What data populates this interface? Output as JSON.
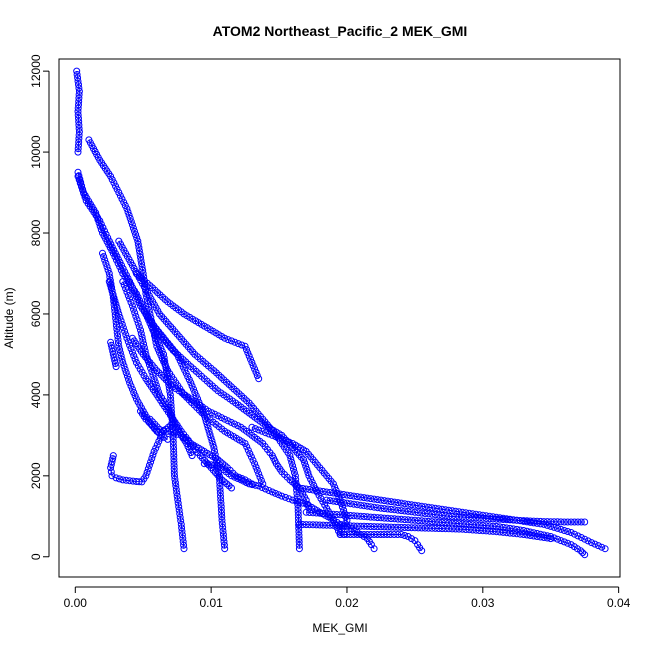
{
  "chart_data": {
    "type": "scatter",
    "title": "ATOM2 Northeast_Pacific_2 MEK_GMI",
    "xlabel": "MEK_GMI",
    "ylabel": "Altitude (m)",
    "xlim": [
      -0.0012,
      0.0401
    ],
    "ylim": [
      -500,
      12300
    ],
    "x_ticks": [
      0.0,
      0.01,
      0.02,
      0.03,
      0.04
    ],
    "x_tick_labels": [
      "0.00",
      "0.01",
      "0.02",
      "0.03",
      "0.04"
    ],
    "y_ticks": [
      0,
      2000,
      4000,
      6000,
      8000,
      10000,
      12000
    ],
    "y_tick_labels": [
      "0",
      "2000",
      "4000",
      "6000",
      "8000",
      "10000",
      "12000"
    ],
    "color": "#0000ff",
    "marker": "open-circle",
    "grid": false,
    "legend": "none",
    "series": [
      {
        "x": [
          0.0001,
          0.0003,
          0.0002,
          0.0003,
          0.0002
        ],
        "y": [
          12000,
          11500,
          11000,
          10500,
          10000
        ]
      },
      {
        "x": [
          0.0002,
          0.0006,
          0.0015,
          0.002,
          0.0028,
          0.0035,
          0.0045,
          0.0052,
          0.0065,
          0.007,
          0.0072,
          0.0073,
          0.0075,
          0.0078,
          0.008
        ],
        "y": [
          9500,
          9000,
          8500,
          8000,
          7500,
          7000,
          6500,
          6000,
          5000,
          4000,
          3000,
          2000,
          1500,
          800,
          200
        ]
      },
      {
        "x": [
          0.0002,
          0.0008,
          0.0018,
          0.0025,
          0.0034,
          0.004,
          0.0048,
          0.0058,
          0.0075,
          0.0085,
          0.0095,
          0.0102,
          0.0106,
          0.0108,
          0.011
        ],
        "y": [
          9400,
          8800,
          8300,
          7800,
          7200,
          6800,
          6200,
          5700,
          5000,
          4300,
          3500,
          2700,
          2000,
          900,
          200
        ]
      },
      {
        "x": [
          0.001,
          0.0018,
          0.0026,
          0.0032,
          0.0038,
          0.0042,
          0.0046,
          0.0048,
          0.005,
          0.0052,
          0.0055,
          0.006,
          0.0068,
          0.008,
          0.0095,
          0.011,
          0.0125,
          0.0132,
          0.0138
        ],
        "y": [
          10300,
          9800,
          9400,
          9000,
          8600,
          8200,
          7800,
          7400,
          7000,
          6500,
          6000,
          5200,
          4600,
          4000,
          3500,
          3100,
          2800,
          2300,
          1800
        ]
      },
      {
        "x": [
          0.0045,
          0.0055,
          0.0068,
          0.008,
          0.0095,
          0.011,
          0.0125,
          0.013,
          0.0135
        ],
        "y": [
          7000,
          6700,
          6300,
          6000,
          5700,
          5400,
          5200,
          4800,
          4400
        ]
      },
      {
        "x": [
          0.0032,
          0.0042,
          0.0052,
          0.0062,
          0.0075,
          0.0088,
          0.0102,
          0.0115,
          0.0128,
          0.0138,
          0.0148,
          0.0158,
          0.0162,
          0.0164,
          0.0165
        ],
        "y": [
          7800,
          7200,
          6600,
          6000,
          5500,
          5000,
          4600,
          4200,
          3800,
          3400,
          3000,
          2500,
          2000,
          1200,
          200
        ]
      },
      {
        "x": [
          0.0052,
          0.0062,
          0.0072,
          0.0085,
          0.0095,
          0.0105,
          0.0118,
          0.013,
          0.0142,
          0.0152,
          0.016,
          0.0168,
          0.0172,
          0.0178,
          0.0185,
          0.019,
          0.0195,
          0.0198
        ],
        "y": [
          6000,
          5500,
          5100,
          4700,
          4400,
          4100,
          3800,
          3500,
          3200,
          3000,
          2700,
          2400,
          2000,
          1600,
          1200,
          900,
          550,
          550
        ]
      },
      {
        "x": [
          0.0042,
          0.005,
          0.006,
          0.0072,
          0.0085,
          0.0098,
          0.011,
          0.0122,
          0.013,
          0.0138,
          0.0145,
          0.0148,
          0.0152,
          0.0158,
          0.0165,
          0.017,
          0.0172
        ],
        "y": [
          5400,
          5000,
          4600,
          4200,
          3900,
          3600,
          3400,
          3200,
          3000,
          2800,
          2500,
          2300,
          2100,
          1900,
          1700,
          1400,
          1200
        ]
      },
      {
        "x": [
          0.0035,
          0.0042,
          0.0048,
          0.0052,
          0.0058,
          0.0062,
          0.0068,
          0.0072,
          0.0078,
          0.0085,
          0.0092,
          0.01,
          0.0108,
          0.0115
        ],
        "y": [
          6800,
          6200,
          5600,
          5000,
          4400,
          4000,
          3700,
          3400,
          3100,
          2800,
          2500,
          2200,
          1900,
          1700
        ]
      },
      {
        "x": [
          0.0025,
          0.0032,
          0.0038,
          0.0045,
          0.0052,
          0.006,
          0.007,
          0.0078,
          0.0082,
          0.0086
        ],
        "y": [
          6800,
          6000,
          5400,
          4800,
          4400,
          4000,
          3500,
          3000,
          2800,
          2500
        ]
      },
      {
        "x": [
          0.002,
          0.0025,
          0.0028,
          0.003,
          0.0032,
          0.0035,
          0.004,
          0.0045,
          0.005,
          0.0055,
          0.006
        ],
        "y": [
          7500,
          7000,
          6400,
          5800,
          5200,
          4800,
          4300,
          3900,
          3600,
          3300,
          3100
        ]
      },
      {
        "x": [
          0.0028,
          0.0026,
          0.0027,
          0.003,
          0.0035,
          0.004,
          0.0045,
          0.0049,
          0.0052,
          0.0058,
          0.0065,
          0.0072
        ],
        "y": [
          2500,
          2200,
          2000,
          1950,
          1900,
          1880,
          1860,
          1850,
          2000,
          2600,
          3100,
          3300
        ]
      },
      {
        "x": [
          0.0055,
          0.0062,
          0.0068,
          0.0073,
          0.0078,
          0.0085,
          0.0095,
          0.0105,
          0.0112,
          0.0118,
          0.0125,
          0.013
        ],
        "y": [
          3400,
          3150,
          3100,
          3050,
          3000,
          2800,
          2600,
          2400,
          2200,
          2000,
          1900,
          1800
        ]
      },
      {
        "x": [
          0.0048,
          0.0052,
          0.0058,
          0.0063,
          0.0068
        ],
        "y": [
          3600,
          3400,
          3200,
          3000,
          2900
        ]
      },
      {
        "x": [
          0.0026,
          0.0028,
          0.003
        ],
        "y": [
          5300,
          5000,
          4700
        ]
      },
      {
        "x": [
          0.0095,
          0.0105,
          0.0115,
          0.0122,
          0.0128,
          0.0135,
          0.0145,
          0.0152,
          0.016,
          0.017,
          0.018,
          0.0188,
          0.0195,
          0.0203,
          0.021,
          0.0215,
          0.0218,
          0.022
        ],
        "y": [
          2300,
          2250,
          2000,
          1900,
          1800,
          1750,
          1600,
          1500,
          1400,
          1300,
          1100,
          950,
          800,
          700,
          550,
          450,
          300,
          200
        ]
      },
      {
        "x": [
          0.0195,
          0.021,
          0.022,
          0.0232,
          0.024,
          0.0245,
          0.025,
          0.0252,
          0.0255
        ],
        "y": [
          550,
          550,
          550,
          550,
          550,
          500,
          400,
          300,
          150
        ]
      },
      {
        "x": [
          0.0185,
          0.0205,
          0.0225,
          0.025,
          0.0275,
          0.03,
          0.0325,
          0.0345,
          0.036,
          0.0375
        ],
        "y": [
          1400,
          1300,
          1200,
          1100,
          1000,
          950,
          900,
          870,
          860,
          860
        ]
      },
      {
        "x": [
          0.0165,
          0.0185,
          0.0205,
          0.0225,
          0.0245,
          0.0265,
          0.0285,
          0.0305,
          0.0325,
          0.0345,
          0.0365,
          0.038,
          0.039
        ],
        "y": [
          1700,
          1600,
          1500,
          1400,
          1300,
          1200,
          1100,
          1000,
          900,
          800,
          600,
          350,
          200
        ]
      },
      {
        "x": [
          0.017,
          0.019,
          0.021,
          0.023,
          0.025,
          0.027,
          0.029,
          0.031,
          0.033,
          0.035,
          0.0365,
          0.0372,
          0.0375
        ],
        "y": [
          1100,
          1050,
          1000,
          950,
          900,
          850,
          800,
          750,
          650,
          500,
          300,
          150,
          50
        ]
      },
      {
        "x": [
          0.0165,
          0.0185,
          0.0205,
          0.0225,
          0.0245,
          0.0265,
          0.0285,
          0.031,
          0.033,
          0.035
        ],
        "y": [
          800,
          780,
          760,
          740,
          720,
          700,
          680,
          620,
          550,
          450
        ]
      },
      {
        "x": [
          0.013,
          0.0145,
          0.016,
          0.017,
          0.018,
          0.019,
          0.0195,
          0.02,
          0.0195
        ],
        "y": [
          3200,
          3000,
          2800,
          2600,
          2200,
          1800,
          1400,
          900,
          600
        ]
      }
    ]
  }
}
